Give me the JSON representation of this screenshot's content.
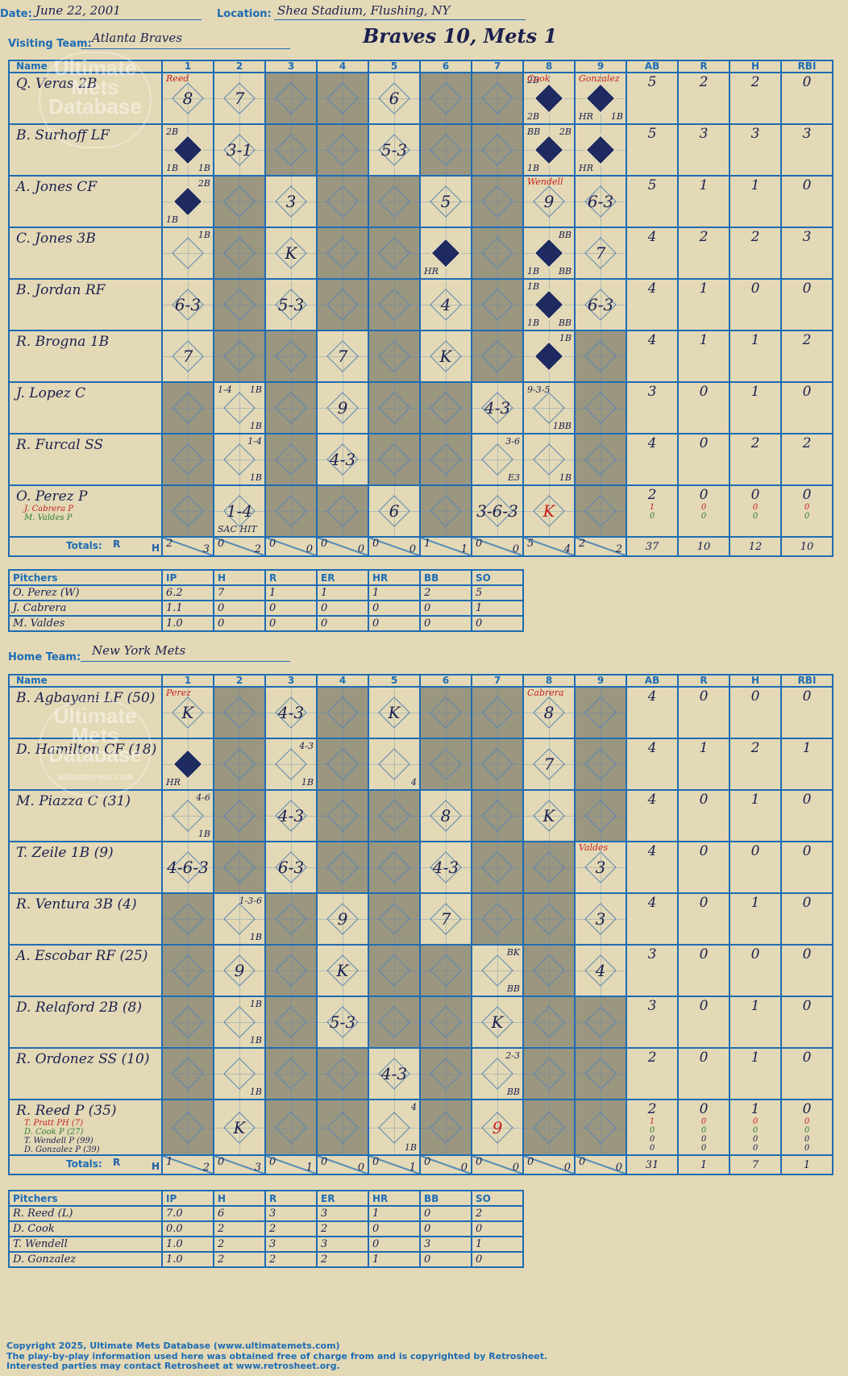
{
  "header": {
    "date_label": "Date:",
    "date": "June 22, 2001",
    "location_label": "Location:",
    "location": "Shea Stadium, Flushing, NY",
    "title": "Braves 10, Mets 1",
    "visiting_label": "Visiting Team:",
    "visiting_team": "Atlanta Braves",
    "home_label": "Home Team:",
    "home_team": "New York Mets"
  },
  "columns": {
    "name": "Name",
    "innings": [
      "1",
      "2",
      "3",
      "4",
      "5",
      "6",
      "7",
      "8",
      "9"
    ],
    "stats": [
      "AB",
      "R",
      "H",
      "RBI"
    ],
    "totals_label": "Totals:",
    "r_label": "R",
    "h_label": "H"
  },
  "watermark": {
    "line1": "Ultimate",
    "line2": "Mets",
    "line3": "Database",
    "small": "ultimatemets.com"
  },
  "visitors": {
    "rows": [
      {
        "name": "Q. Veras 2B",
        "cells": [
          {
            "p": "8",
            "pitcher": "Reed"
          },
          {
            "p": "7"
          },
          {
            "dark": 1
          },
          {
            "dark": 1
          },
          {
            "p": "6"
          },
          {
            "dark": 1
          },
          {
            "dark": 1
          },
          {
            "full": 1,
            "tl": "2B",
            "bl": "2B",
            "pitcher": "Cook"
          },
          {
            "full": 1,
            "bl": "HR",
            "br": "1B",
            "pitcher": "Gonzalez"
          }
        ],
        "stats": [
          "5",
          "2",
          "2",
          "0"
        ]
      },
      {
        "name": "B. Surhoff LF",
        "cells": [
          {
            "full": 1,
            "tl": "2B",
            "bl": "1B",
            "br": "1B"
          },
          {
            "p": "3-1"
          },
          {
            "dark": 1
          },
          {
            "dark": 1
          },
          {
            "p": "5-3"
          },
          {
            "dark": 1
          },
          {
            "dark": 1
          },
          {
            "full": 1,
            "tl": "BB",
            "tr": "2B",
            "bl": "1B"
          },
          {
            "full": 1,
            "bl": "HR"
          }
        ],
        "stats": [
          "5",
          "3",
          "3",
          "3"
        ]
      },
      {
        "name": "A. Jones CF",
        "cells": [
          {
            "full": 1,
            "tr": "2B",
            "bl": "1B"
          },
          {
            "dark": 1
          },
          {
            "p": "3"
          },
          {
            "dark": 1
          },
          {
            "dark": 1
          },
          {
            "p": "5"
          },
          {
            "dark": 1
          },
          {
            "p": "9",
            "pitcher": "Wendell"
          },
          {
            "p": "6-3"
          }
        ],
        "stats": [
          "5",
          "1",
          "1",
          "0"
        ]
      },
      {
        "name": "C. Jones 3B",
        "cells": [
          {
            "tr": "1B"
          },
          {
            "dark": 1
          },
          {
            "p": "K"
          },
          {
            "dark": 1
          },
          {
            "dark": 1
          },
          {
            "full": 1,
            "bl": "HR"
          },
          {
            "dark": 1
          },
          {
            "full": 1,
            "tr": "BB",
            "bl": "1B",
            "br": "BB"
          },
          {
            "p": "7"
          }
        ],
        "stats": [
          "4",
          "2",
          "2",
          "3"
        ]
      },
      {
        "name": "B. Jordan RF",
        "cells": [
          {
            "p": "6-3"
          },
          {
            "dark": 1
          },
          {
            "p": "5-3"
          },
          {
            "dark": 1
          },
          {
            "dark": 1
          },
          {
            "p": "4"
          },
          {
            "dark": 1
          },
          {
            "full": 1,
            "tl": "1B",
            "bl": "1B",
            "br": "BB"
          },
          {
            "p": "6-3"
          }
        ],
        "stats": [
          "4",
          "1",
          "0",
          "0"
        ]
      },
      {
        "name": "R. Brogna 1B",
        "cells": [
          {
            "p": "7"
          },
          {
            "dark": 1
          },
          {
            "dark": 1
          },
          {
            "p": "7"
          },
          {
            "dark": 1
          },
          {
            "p": "K"
          },
          {
            "dark": 1
          },
          {
            "full": 1,
            "tr": "1B"
          },
          {
            "dark": 1
          }
        ],
        "stats": [
          "4",
          "1",
          "1",
          "2"
        ]
      },
      {
        "name": "J. Lopez C",
        "cells": [
          {
            "dark": 1
          },
          {
            "tl": "1-4",
            "tr": "1B",
            "br": "1B"
          },
          {
            "dark": 1
          },
          {
            "p": "9"
          },
          {
            "dark": 1
          },
          {
            "dark": 1
          },
          {
            "p": "4-3"
          },
          {
            "tl": "9-3-5",
            "br": "1BB"
          },
          {
            "dark": 1
          }
        ],
        "stats": [
          "3",
          "0",
          "1",
          "0"
        ]
      },
      {
        "name": "R. Furcal SS",
        "cells": [
          {
            "dark": 1
          },
          {
            "tr": "1-4",
            "br": "1B"
          },
          {
            "dark": 1
          },
          {
            "p": "4-3"
          },
          {
            "dark": 1
          },
          {
            "dark": 1
          },
          {
            "tr": "3-6",
            "br": "E3"
          },
          {
            "br": "1B"
          },
          {
            "dark": 1
          }
        ],
        "stats": [
          "4",
          "0",
          "2",
          "2"
        ]
      },
      {
        "name": "O. Perez P",
        "subs": [
          {
            "n": "J. Cabrera P",
            "c": "#c8201e"
          },
          {
            "n": "M. Valdes P",
            "c": "#2e7d32"
          }
        ],
        "cells": [
          {
            "dark": 1
          },
          {
            "p": "1-4",
            "bl": "SAC HIT"
          },
          {
            "dark": 1
          },
          {
            "dark": 1
          },
          {
            "p": "6"
          },
          {
            "dark": 1
          },
          {
            "p": "3-6-3"
          },
          {
            "p": "K",
            "red": 1
          },
          {
            "dark": 1
          }
        ],
        "stats": [
          "2",
          "0",
          "0",
          "0"
        ],
        "substats": [
          [
            "1",
            "0",
            "0",
            "0"
          ],
          [
            "0",
            "0",
            "0",
            "0"
          ]
        ]
      }
    ],
    "totals": [
      [
        "2",
        "3"
      ],
      [
        "0",
        "2"
      ],
      [
        "0",
        "0"
      ],
      [
        "0",
        "0"
      ],
      [
        "0",
        "0"
      ],
      [
        "1",
        "1"
      ],
      [
        "0",
        "0"
      ],
      [
        "5",
        "4"
      ],
      [
        "2",
        "2"
      ]
    ],
    "total_stats": [
      "37",
      "10",
      "12",
      "10"
    ]
  },
  "visitor_pitching": {
    "headers": [
      "Pitchers",
      "IP",
      "H",
      "R",
      "ER",
      "HR",
      "BB",
      "SO"
    ],
    "rows": [
      [
        "O. Perez (W)",
        "6.2",
        "7",
        "1",
        "1",
        "1",
        "2",
        "5"
      ],
      [
        "J. Cabrera",
        "1.1",
        "0",
        "0",
        "0",
        "0",
        "0",
        "1"
      ],
      [
        "M. Valdes",
        "1.0",
        "0",
        "0",
        "0",
        "0",
        "0",
        "0"
      ]
    ]
  },
  "home": {
    "rows": [
      {
        "name": "B. Agbayani LF (50)",
        "cells": [
          {
            "p": "K",
            "pitcher": "Perez"
          },
          {
            "dark": 1
          },
          {
            "p": "4-3"
          },
          {
            "dark": 1
          },
          {
            "p": "K"
          },
          {
            "dark": 1
          },
          {
            "dark": 1
          },
          {
            "p": "8",
            "pitcher": "Cabrera"
          },
          {
            "dark": 1
          }
        ],
        "stats": [
          "4",
          "0",
          "0",
          "0"
        ]
      },
      {
        "name": "D. Hamilton CF (18)",
        "cells": [
          {
            "full": 1,
            "bl": "HR"
          },
          {
            "dark": 1
          },
          {
            "tr": "4-3",
            "br": "1B"
          },
          {
            "dark": 1
          },
          {
            "br": "4"
          },
          {
            "dark": 1
          },
          {
            "dark": 1
          },
          {
            "p": "7"
          },
          {
            "dark": 1
          }
        ],
        "stats": [
          "4",
          "1",
          "2",
          "1"
        ]
      },
      {
        "name": "M. Piazza C (31)",
        "cells": [
          {
            "tr": "4-6",
            "br": "1B"
          },
          {
            "dark": 1
          },
          {
            "p": "4-3"
          },
          {
            "dark": 1
          },
          {
            "dark": 1
          },
          {
            "p": "8"
          },
          {
            "dark": 1
          },
          {
            "p": "K"
          },
          {
            "dark": 1
          }
        ],
        "stats": [
          "4",
          "0",
          "1",
          "0"
        ]
      },
      {
        "name": "T. Zeile 1B (9)",
        "cells": [
          {
            "p": "4-6-3"
          },
          {
            "dark": 1
          },
          {
            "p": "6-3"
          },
          {
            "dark": 1
          },
          {
            "dark": 1
          },
          {
            "p": "4-3"
          },
          {
            "dark": 1
          },
          {
            "dark": 1
          },
          {
            "p": "3",
            "pitcher": "Valdes"
          }
        ],
        "stats": [
          "4",
          "0",
          "0",
          "0"
        ]
      },
      {
        "name": "R. Ventura 3B (4)",
        "cells": [
          {
            "dark": 1
          },
          {
            "tr": "1-3-6",
            "br": "1B"
          },
          {
            "dark": 1
          },
          {
            "p": "9"
          },
          {
            "dark": 1
          },
          {
            "p": "7"
          },
          {
            "dark": 1
          },
          {
            "dark": 1
          },
          {
            "p": "3"
          }
        ],
        "stats": [
          "4",
          "0",
          "1",
          "0"
        ]
      },
      {
        "name": "A. Escobar RF (25)",
        "cells": [
          {
            "dark": 1
          },
          {
            "p": "9"
          },
          {
            "dark": 1
          },
          {
            "p": "K"
          },
          {
            "dark": 1
          },
          {
            "dark": 1
          },
          {
            "tr": "BK",
            "br": "BB"
          },
          {
            "dark": 1
          },
          {
            "p": "4"
          }
        ],
        "stats": [
          "3",
          "0",
          "0",
          "0"
        ]
      },
      {
        "name": "D. Relaford 2B (8)",
        "cells": [
          {
            "dark": 1
          },
          {
            "tr": "1B",
            "br": "1B"
          },
          {
            "dark": 1
          },
          {
            "p": "5-3"
          },
          {
            "dark": 1
          },
          {
            "dark": 1
          },
          {
            "p": "K"
          },
          {
            "dark": 1
          },
          {
            "dark": 1
          }
        ],
        "stats": [
          "3",
          "0",
          "1",
          "0"
        ]
      },
      {
        "name": "R. Ordonez SS (10)",
        "cells": [
          {
            "dark": 1
          },
          {
            "br": "1B"
          },
          {
            "dark": 1
          },
          {
            "dark": 1
          },
          {
            "p": "4-3"
          },
          {
            "dark": 1
          },
          {
            "tr": "2-3",
            "br": "BB"
          },
          {
            "dark": 1
          },
          {
            "dark": 1
          }
        ],
        "stats": [
          "2",
          "0",
          "1",
          "0"
        ]
      },
      {
        "name": "R. Reed P (35)",
        "subs": [
          {
            "n": "T. Pratt PH (7)",
            "c": "#c8201e"
          },
          {
            "n": "D. Cook P (27)",
            "c": "#2e7d32"
          },
          {
            "n": "T. Wendell P (99)",
            "c": "#1b2050"
          },
          {
            "n": "D. Gonzalez P (39)",
            "c": "#1b2050"
          }
        ],
        "cells": [
          {
            "dark": 1
          },
          {
            "p": "K"
          },
          {
            "dark": 1
          },
          {
            "dark": 1
          },
          {
            "tr": "4",
            "br": "1B"
          },
          {
            "dark": 1
          },
          {
            "p": "9",
            "red": 1
          },
          {
            "dark": 1
          },
          {
            "dark": 1
          }
        ],
        "stats": [
          "2",
          "0",
          "1",
          "0"
        ],
        "substats": [
          [
            "1",
            "0",
            "0",
            "0"
          ],
          [
            "0",
            "0",
            "0",
            "0"
          ],
          [
            "0",
            "0",
            "0",
            "0"
          ],
          [
            "0",
            "0",
            "0",
            "0"
          ]
        ]
      }
    ],
    "totals": [
      [
        "1",
        "2"
      ],
      [
        "0",
        "3"
      ],
      [
        "0",
        "1"
      ],
      [
        "0",
        "0"
      ],
      [
        "0",
        "1"
      ],
      [
        "0",
        "0"
      ],
      [
        "0",
        "0"
      ],
      [
        "0",
        "0"
      ],
      [
        "0",
        "0"
      ]
    ],
    "total_stats": [
      "31",
      "1",
      "7",
      "1"
    ]
  },
  "home_pitching": {
    "headers": [
      "Pitchers",
      "IP",
      "H",
      "R",
      "ER",
      "HR",
      "BB",
      "SO"
    ],
    "rows": [
      [
        "R. Reed (L)",
        "7.0",
        "6",
        "3",
        "3",
        "1",
        "0",
        "2"
      ],
      [
        "D. Cook",
        "0.0",
        "2",
        "2",
        "2",
        "0",
        "0",
        "0"
      ],
      [
        "T. Wendell",
        "1.0",
        "2",
        "3",
        "3",
        "0",
        "3",
        "1"
      ],
      [
        "D. Gonzalez",
        "1.0",
        "2",
        "2",
        "2",
        "1",
        "0",
        "0"
      ]
    ]
  },
  "footer": {
    "line1": "Copyright 2025, Ultimate Mets Database (www.ultimatemets.com)",
    "line2": "The play-by-play information used here was obtained free of charge from and is copyrighted by Retrosheet.",
    "line3": "Interested parties may contact Retrosheet at www.retrosheet.org."
  }
}
